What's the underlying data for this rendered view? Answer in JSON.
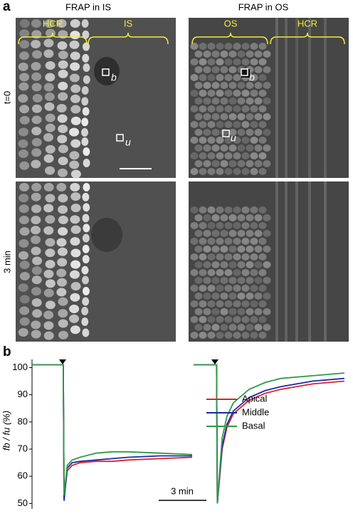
{
  "figure": {
    "panel_a": "a",
    "panel_b": "b",
    "col_titles": [
      "FRAP in IS",
      "FRAP in OS"
    ],
    "row_labels": [
      "t=0",
      "3 min"
    ],
    "region_labels": [
      "HCR",
      "IS",
      "OS",
      "HCR"
    ],
    "roi_labels": [
      "b",
      "u",
      "b",
      "u"
    ],
    "scale_bar": "3 min",
    "y_label": "fb / fu (%)"
  },
  "chart_data": [
    {
      "type": "line",
      "x": [
        -2,
        -0.05,
        0,
        0.2,
        0.5,
        1,
        2,
        3,
        4,
        6,
        8
      ],
      "xlim": [
        -2,
        8
      ],
      "ylim": [
        48,
        103
      ],
      "yticks": [
        50,
        60,
        70,
        80,
        90,
        100
      ],
      "series": [
        {
          "name": "Apical",
          "color": "#e0202a",
          "values": [
            101,
            101,
            52,
            62,
            64,
            65,
            65.5,
            65.5,
            66,
            66.5,
            67
          ]
        },
        {
          "name": "Middle",
          "color": "#1a2aa8",
          "values": [
            101,
            101,
            51,
            63,
            65,
            65.5,
            66,
            66.5,
            67,
            67.5,
            67.5
          ]
        },
        {
          "name": "Basal",
          "color": "#2e9a48",
          "values": [
            101,
            101,
            53,
            64,
            66,
            67,
            68.5,
            69,
            69,
            68.5,
            68
          ]
        }
      ]
    },
    {
      "type": "line",
      "x": [
        -1.5,
        -0.05,
        0,
        0.3,
        0.6,
        1,
        2,
        3,
        4,
        6,
        8
      ],
      "xlim": [
        -1.5,
        8.5
      ],
      "ylim": [
        48,
        103
      ],
      "series": [
        {
          "name": "Apical",
          "color": "#e0202a",
          "values": [
            101,
            101,
            50,
            70,
            78,
            83,
            88,
            90.5,
            92,
            94,
            95
          ]
        },
        {
          "name": "Middle",
          "color": "#1a2aa8",
          "values": [
            101,
            101,
            50,
            71,
            79,
            84,
            89,
            91.5,
            93,
            95,
            96
          ]
        },
        {
          "name": "Basal",
          "color": "#2e9a48",
          "values": [
            101,
            101,
            50,
            74,
            82,
            87,
            92,
            94.5,
            96,
            97,
            98
          ]
        }
      ]
    }
  ]
}
